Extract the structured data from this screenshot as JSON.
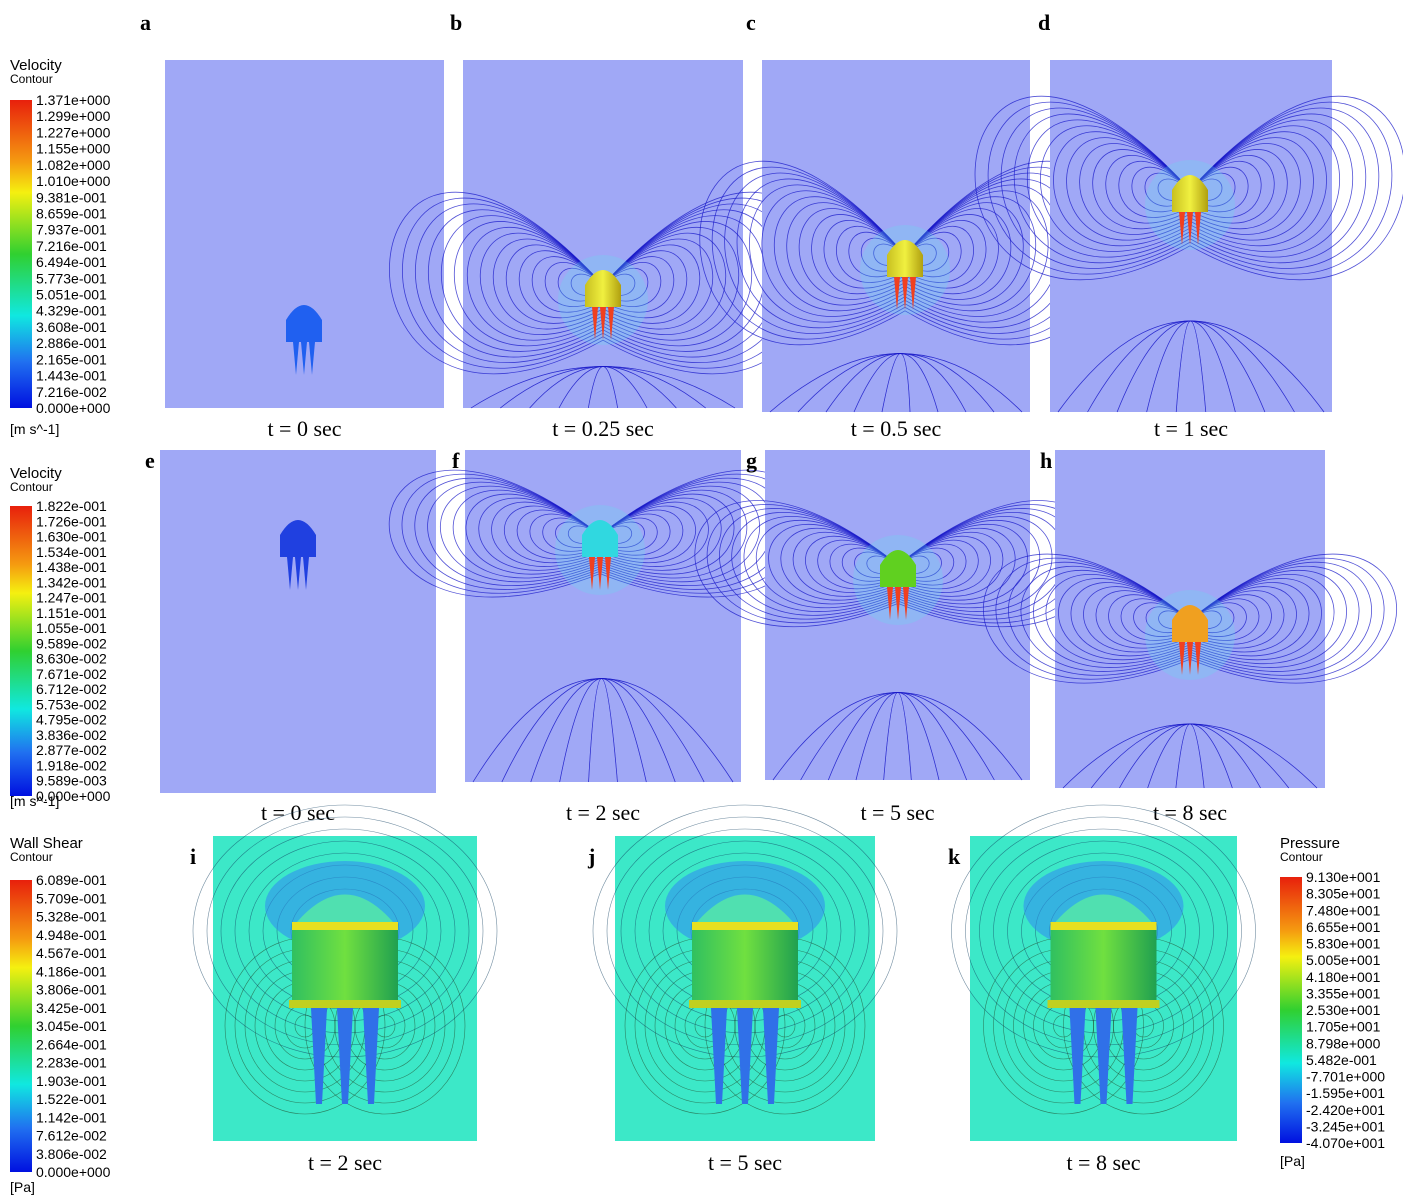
{
  "legends": [
    {
      "title": "Velocity",
      "subtitle": "Contour",
      "labels": [
        "1.371e+000",
        "1.299e+000",
        "1.227e+000",
        "1.155e+000",
        "1.082e+000",
        "1.010e+000",
        "9.381e-001",
        "8.659e-001",
        "7.937e-001",
        "7.216e-001",
        "6.494e-001",
        "5.773e-001",
        "5.051e-001",
        "4.329e-001",
        "3.608e-001",
        "2.886e-001",
        "2.165e-001",
        "1.443e-001",
        "7.216e-002",
        "0.000e+000"
      ],
      "unit": "[m s^-1]"
    },
    {
      "title": "Velocity",
      "subtitle": "Contour",
      "labels": [
        "1.822e-001",
        "1.726e-001",
        "1.630e-001",
        "1.534e-001",
        "1.438e-001",
        "1.342e-001",
        "1.247e-001",
        "1.151e-001",
        "1.055e-001",
        "9.589e-002",
        "8.630e-002",
        "7.671e-002",
        "6.712e-002",
        "5.753e-002",
        "4.795e-002",
        "3.836e-002",
        "2.877e-002",
        "1.918e-002",
        "9.589e-003",
        "0.000e+000"
      ],
      "unit": "[m s^-1]"
    },
    {
      "title": "Wall Shear",
      "subtitle": "Contour",
      "labels": [
        "6.089e-001",
        "5.709e-001",
        "5.328e-001",
        "4.948e-001",
        "4.567e-001",
        "4.186e-001",
        "3.806e-001",
        "3.425e-001",
        "3.045e-001",
        "2.664e-001",
        "2.283e-001",
        "1.903e-001",
        "1.522e-001",
        "1.142e-001",
        "7.612e-002",
        "3.806e-002",
        "0.000e+000"
      ],
      "unit": "[Pa]"
    },
    {
      "title": "Pressure",
      "subtitle": "Contour",
      "labels": [
        "9.130e+001",
        "8.305e+001",
        "7.480e+001",
        "6.655e+001",
        "5.830e+001",
        "5.005e+001",
        "4.180e+001",
        "3.355e+001",
        "2.530e+001",
        "1.705e+001",
        "8.798e+000",
        "5.482e-001",
        "-7.701e+000",
        "-1.595e+001",
        "-2.420e+001",
        "-3.245e+001",
        "-4.070e+001"
      ],
      "unit": "[Pa]"
    }
  ],
  "panels": [
    {
      "letter": "a",
      "caption": "t = 0 sec"
    },
    {
      "letter": "b",
      "caption": "t = 0.25 sec"
    },
    {
      "letter": "c",
      "caption": "t = 0.5 sec"
    },
    {
      "letter": "d",
      "caption": "t = 1 sec"
    },
    {
      "letter": "e",
      "caption": "t = 0 sec"
    },
    {
      "letter": "f",
      "caption": "t = 2 sec"
    },
    {
      "letter": "g",
      "caption": "t = 5 sec"
    },
    {
      "letter": "h",
      "caption": "t = 8 sec"
    },
    {
      "letter": "i",
      "caption": "t = 2 sec"
    },
    {
      "letter": "j",
      "caption": "t = 5 sec"
    },
    {
      "letter": "k",
      "caption": "t = 8 sec"
    }
  ]
}
